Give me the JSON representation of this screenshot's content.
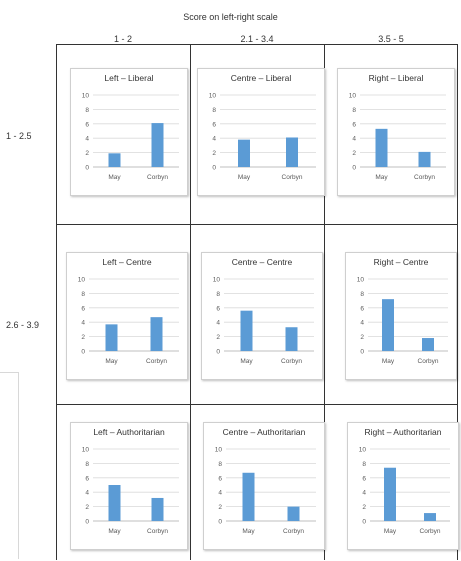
{
  "header": {
    "title": "Score on left-right scale",
    "columns": [
      "1 - 2",
      "2.1 - 3.4",
      "3.5 - 5"
    ],
    "rows": [
      "1 - 2.5",
      "2.6 - 3.9",
      ""
    ]
  },
  "colors": {
    "bar": "#5b9bd5",
    "grid": "#d9d9d9",
    "axis": "#bfbfbf"
  },
  "chart_data": [
    {
      "type": "bar",
      "title": "Left – Liberal",
      "categories": [
        "May",
        "Corbyn"
      ],
      "values": [
        1.9,
        6.1
      ],
      "ylim": [
        0,
        10
      ],
      "yticks": [
        "0",
        "2",
        "4",
        "6",
        "8",
        "10"
      ],
      "grid": true
    },
    {
      "type": "bar",
      "title": "Centre – Liberal",
      "categories": [
        "May",
        "Corbyn"
      ],
      "values": [
        3.8,
        4.1
      ],
      "ylim": [
        0,
        10
      ],
      "yticks": [
        "0",
        "2",
        "4",
        "6",
        "8",
        "10"
      ],
      "grid": true
    },
    {
      "type": "bar",
      "title": "Right – Liberal",
      "categories": [
        "May",
        "Corbyn"
      ],
      "values": [
        5.3,
        2.1
      ],
      "ylim": [
        0,
        10
      ],
      "yticks": [
        "0",
        "2",
        "4",
        "6",
        "8",
        "10"
      ],
      "grid": true
    },
    {
      "type": "bar",
      "title": "Left – Centre",
      "categories": [
        "May",
        "Corbyn"
      ],
      "values": [
        3.7,
        4.7
      ],
      "ylim": [
        0,
        10
      ],
      "yticks": [
        "0",
        "2",
        "4",
        "6",
        "8",
        "10"
      ],
      "grid": true
    },
    {
      "type": "bar",
      "title": "Centre – Centre",
      "categories": [
        "May",
        "Corbyn"
      ],
      "values": [
        5.6,
        3.3
      ],
      "ylim": [
        0,
        10
      ],
      "yticks": [
        "0",
        "2",
        "4",
        "6",
        "8",
        "10"
      ],
      "grid": true
    },
    {
      "type": "bar",
      "title": "Right – Centre",
      "categories": [
        "May",
        "Corbyn"
      ],
      "values": [
        7.2,
        1.8
      ],
      "ylim": [
        0,
        10
      ],
      "yticks": [
        "0",
        "2",
        "4",
        "6",
        "8",
        "10"
      ],
      "grid": true
    },
    {
      "type": "bar",
      "title": "Left – Authoritarian",
      "categories": [
        "May",
        "Corbyn"
      ],
      "values": [
        5.0,
        3.2
      ],
      "ylim": [
        0,
        10
      ],
      "yticks": [
        "0",
        "2",
        "4",
        "6",
        "8",
        "10"
      ],
      "grid": true
    },
    {
      "type": "bar",
      "title": "Centre – Authoritarian",
      "categories": [
        "May",
        "Corbyn"
      ],
      "values": [
        6.7,
        2.0
      ],
      "ylim": [
        0,
        10
      ],
      "yticks": [
        "0",
        "2",
        "4",
        "6",
        "8",
        "10"
      ],
      "grid": true
    },
    {
      "type": "bar",
      "title": "Right – Authoritarian",
      "categories": [
        "May",
        "Corbyn"
      ],
      "values": [
        7.4,
        1.1
      ],
      "ylim": [
        0,
        10
      ],
      "yticks": [
        "0",
        "2",
        "4",
        "6",
        "8",
        "10"
      ],
      "grid": true
    }
  ]
}
